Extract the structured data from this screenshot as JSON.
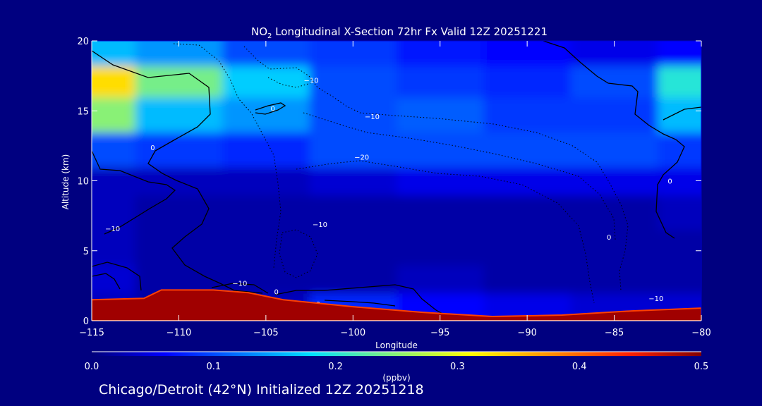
{
  "chart_data": {
    "type": "heatmap",
    "title_prefix": "NO",
    "title_subscript": "2",
    "title_rest": " Longitudinal X-Section 72hr  Fx Valid 12Z 20251221",
    "xlabel": "Longitude",
    "ylabel": "Altitude (km)",
    "xlim": [
      -115,
      -80
    ],
    "ylim": [
      0,
      20
    ],
    "x_ticks": [
      -115,
      -110,
      -105,
      -100,
      -95,
      -90,
      -85,
      -80
    ],
    "x_tick_labels": [
      "−115",
      "−110",
      "−105",
      "−100",
      "−95",
      "−90",
      "−85",
      "−80"
    ],
    "y_ticks": [
      0,
      5,
      10,
      15,
      20
    ],
    "y_tick_labels": [
      "0",
      "5",
      "10",
      "15",
      "20"
    ],
    "colorbar": {
      "label": "(ppbv)",
      "range": [
        0.0,
        0.5
      ],
      "ticks": [
        0.0,
        0.1,
        0.2,
        0.3,
        0.4,
        0.5
      ],
      "tick_labels": [
        "0.0",
        "0.1",
        "0.2",
        "0.3",
        "0.4",
        "0.5"
      ]
    },
    "field": {
      "description": "NO2 mixing ratio (ppbv) by longitude and altitude (approximate)",
      "longitudes": [
        -115,
        -110,
        -105,
        -100,
        -95,
        -90,
        -85,
        -80
      ],
      "altitudes_km": [
        1,
        3,
        5,
        8,
        10,
        12,
        15,
        17,
        19.5
      ],
      "values": [
        [
          0.03,
          0.02,
          0.03,
          0.08,
          0.06,
          0.05,
          0.04,
          0.04
        ],
        [
          0.04,
          0.02,
          0.02,
          0.02,
          0.03,
          0.02,
          0.02,
          0.02
        ],
        [
          0.03,
          0.02,
          0.02,
          0.02,
          0.02,
          0.02,
          0.02,
          0.02
        ],
        [
          0.03,
          0.02,
          0.02,
          0.02,
          0.02,
          0.02,
          0.02,
          0.03
        ],
        [
          0.03,
          0.03,
          0.03,
          0.04,
          0.05,
          0.05,
          0.05,
          0.05
        ],
        [
          0.1,
          0.09,
          0.08,
          0.1,
          0.1,
          0.1,
          0.1,
          0.09
        ],
        [
          0.25,
          0.16,
          0.14,
          0.1,
          0.11,
          0.09,
          0.09,
          0.16
        ],
        [
          0.33,
          0.24,
          0.17,
          0.1,
          0.09,
          0.08,
          0.1,
          0.2
        ],
        [
          0.16,
          0.14,
          0.1,
          0.09,
          0.07,
          0.06,
          0.05,
          0.06
        ]
      ]
    },
    "terrain_km": {
      "longitudes": [
        -115,
        -112,
        -111,
        -108,
        -106,
        -104,
        -100,
        -96,
        -92,
        -88,
        -84,
        -80
      ],
      "heights": [
        1.5,
        1.6,
        2.2,
        2.2,
        2.0,
        1.5,
        1.0,
        0.6,
        0.3,
        0.4,
        0.7,
        0.9
      ]
    },
    "contour_labels": [
      {
        "text": "−10",
        "lon": -102.4,
        "alt": 17.0
      },
      {
        "text": "−10",
        "lon": -98.9,
        "alt": 14.4
      },
      {
        "text": "−20",
        "lon": -99.5,
        "alt": 11.5
      },
      {
        "text": "0",
        "lon": -104.6,
        "alt": 15.0
      },
      {
        "text": "0",
        "lon": -111.5,
        "alt": 12.2
      },
      {
        "text": "0",
        "lon": -81.8,
        "alt": 9.8
      },
      {
        "text": "−10",
        "lon": -113.8,
        "alt": 6.4
      },
      {
        "text": "−10",
        "lon": -101.9,
        "alt": 6.7
      },
      {
        "text": "0",
        "lon": -85.3,
        "alt": 5.8
      },
      {
        "text": "−10",
        "lon": -106.5,
        "alt": 2.5
      },
      {
        "text": "0",
        "lon": -104.4,
        "alt": 1.9
      },
      {
        "text": "0",
        "lon": -102.0,
        "alt": 1.0
      },
      {
        "text": "−10",
        "lon": -82.6,
        "alt": 1.4
      }
    ]
  },
  "footer": "Chicago/Detroit (42°N) Initialized 12Z 20251218"
}
